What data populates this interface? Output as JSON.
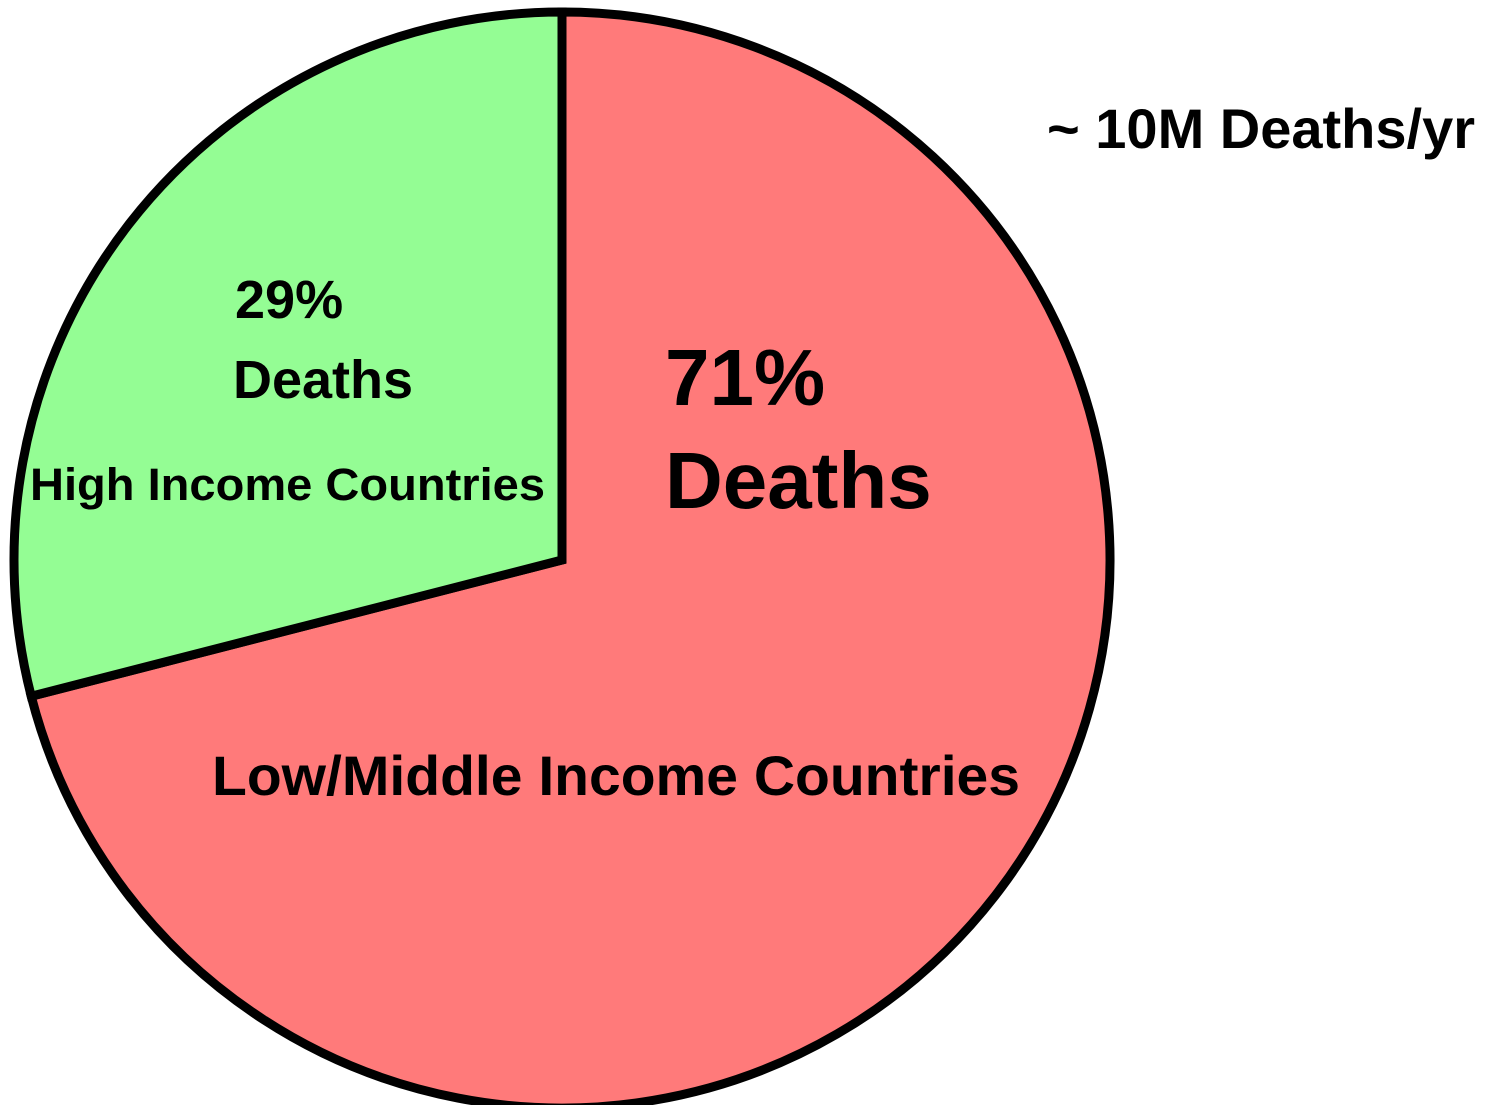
{
  "chart_data": {
    "type": "pie",
    "title": "",
    "annotation": "~ 10M Deaths/yr",
    "slices": [
      {
        "category": "Low/Middle Income Countries",
        "value": 71,
        "percent_text": "71%",
        "deaths_text": "Deaths",
        "color": "#ff7a7a"
      },
      {
        "category": "High Income Countries",
        "value": 29,
        "percent_text": "29%",
        "deaths_text": "Deaths",
        "color": "#94fd94"
      }
    ],
    "outline_color": "#000000"
  }
}
